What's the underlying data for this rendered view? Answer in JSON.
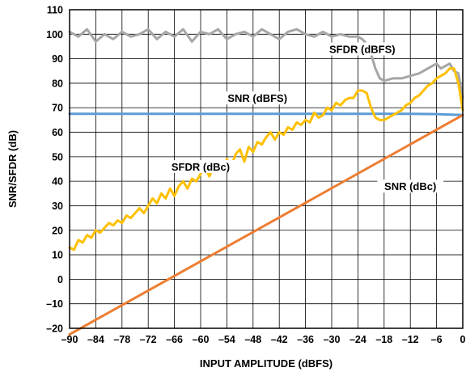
{
  "chart_data": {
    "type": "line",
    "xlabel": "INPUT AMPLITUDE (dBFS)",
    "ylabel": "SNR/SFDR (dB)",
    "xlim": [
      -90,
      0
    ],
    "ylim": [
      -20,
      110
    ],
    "x_ticks": [
      -90,
      -84,
      -78,
      -72,
      -66,
      -60,
      -54,
      -48,
      -42,
      -36,
      -30,
      -24,
      -18,
      -12,
      -6,
      0
    ],
    "x_tick_labels": [
      "–90",
      "–84",
      "–78",
      "–72",
      "–66",
      "–60",
      "–54",
      "–48",
      "–42",
      "–36",
      "–30",
      "–24",
      "–18",
      "–12",
      "–6",
      "0"
    ],
    "y_ticks": [
      -20,
      -10,
      0,
      10,
      20,
      30,
      40,
      50,
      60,
      70,
      80,
      90,
      100,
      110
    ],
    "y_tick_labels": [
      "–20",
      "–10",
      "0",
      "10",
      "20",
      "30",
      "40",
      "50",
      "60",
      "70",
      "80",
      "90",
      "100",
      "110"
    ],
    "grid": true,
    "legend": "none",
    "series": [
      {
        "name": "SFDR (dBFS)",
        "color": "#a6a6a6",
        "x": [
          -90,
          -88,
          -86,
          -84,
          -82,
          -80,
          -78,
          -76,
          -74,
          -72,
          -70,
          -68,
          -66,
          -64,
          -62,
          -60,
          -58,
          -56,
          -54,
          -52,
          -50,
          -48,
          -46,
          -44,
          -42,
          -40,
          -38,
          -36,
          -34,
          -32,
          -30,
          -28,
          -26,
          -24,
          -23,
          -22,
          -21,
          -20,
          -19,
          -18,
          -16,
          -14,
          -12,
          -10,
          -8,
          -6,
          -5,
          -4,
          -3,
          -2,
          -1,
          0
        ],
        "y": [
          101,
          99,
          102,
          97,
          100,
          98,
          101,
          99,
          100,
          102,
          98,
          101,
          99,
          102,
          97,
          101,
          100,
          102,
          98,
          100,
          101,
          99,
          102,
          100,
          98,
          101,
          102,
          100,
          99,
          101,
          99,
          100,
          99,
          99,
          98,
          96,
          92,
          86,
          82,
          81,
          82,
          82,
          83,
          84,
          86,
          88,
          86,
          87,
          88,
          85,
          84,
          74
        ]
      },
      {
        "name": "SNR (dBFS)",
        "color": "#5b9bd5",
        "x": [
          -90,
          -60,
          -30,
          -12,
          -6,
          -3,
          0
        ],
        "y": [
          67.5,
          67.5,
          67.5,
          67.5,
          67.4,
          67.2,
          67.0
        ]
      },
      {
        "name": "SFDR (dBc)",
        "color": "#ffc000",
        "x": [
          -90,
          -89,
          -88,
          -87,
          -86,
          -85,
          -84,
          -83,
          -82,
          -81,
          -80,
          -79,
          -78,
          -77,
          -76,
          -75,
          -74,
          -73,
          -72,
          -71,
          -70,
          -69,
          -68,
          -67,
          -66,
          -65,
          -64,
          -63,
          -62,
          -61,
          -60,
          -59,
          -58,
          -57,
          -56,
          -55,
          -54,
          -53,
          -52,
          -51,
          -50,
          -49,
          -48,
          -47,
          -46,
          -45,
          -44,
          -43,
          -42,
          -41,
          -40,
          -39,
          -38,
          -37,
          -36,
          -35,
          -34,
          -33,
          -32,
          -31,
          -30,
          -29,
          -28,
          -27,
          -26,
          -25,
          -24,
          -23,
          -22,
          -21,
          -20,
          -19,
          -18,
          -17,
          -16,
          -15,
          -14,
          -13,
          -12,
          -11,
          -10,
          -9,
          -8,
          -7,
          -6,
          -5,
          -4,
          -3,
          -2,
          -1,
          0
        ],
        "y": [
          13,
          12,
          16,
          15,
          18,
          17,
          20,
          19,
          21,
          23,
          22,
          24,
          23,
          26,
          25,
          27,
          29,
          27,
          30,
          33,
          31,
          35,
          33,
          37,
          34,
          38,
          40,
          37,
          41,
          40,
          43,
          46,
          42,
          46,
          47,
          44,
          49,
          46,
          51,
          53,
          48,
          54,
          52,
          56,
          55,
          58,
          60,
          57,
          60,
          59,
          62,
          61,
          64,
          63,
          65,
          64,
          68,
          66,
          67,
          70,
          69,
          72,
          71,
          73,
          74,
          74,
          77,
          77,
          76,
          70,
          66,
          65,
          65,
          66,
          67,
          68,
          69,
          71,
          72,
          74,
          75,
          77,
          79,
          80,
          82,
          83,
          84,
          86,
          86,
          80,
          69
        ]
      },
      {
        "name": "SNR (dBc)",
        "color": "#ed7d31",
        "x": [
          -90,
          0
        ],
        "y": [
          -22.5,
          67.0
        ]
      }
    ],
    "annotations": [
      {
        "text": "SFDR (dBFS)",
        "x": -23,
        "y": 93,
        "series": 0
      },
      {
        "text": "SNR (dBFS)",
        "x": -47,
        "y": 73,
        "series": 1
      },
      {
        "text": "SFDR (dBc)",
        "x": -60,
        "y": 45,
        "series": 2
      },
      {
        "text": "SNR (dBc)",
        "x": -12,
        "y": 37,
        "series": 3
      }
    ]
  }
}
